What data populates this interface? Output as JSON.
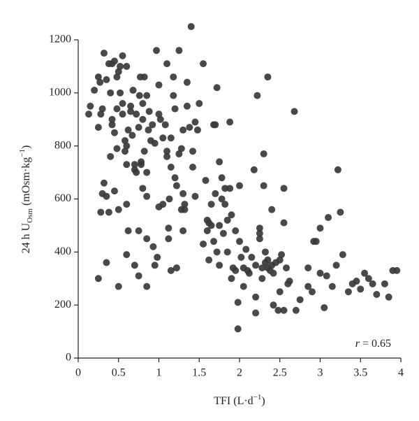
{
  "chart_data": {
    "type": "scatter",
    "xlabel": [
      "TFI (L·d",
      "−1",
      ")"
    ],
    "ylabel": [
      "24 h U",
      "Osm",
      " (mOsm·kg",
      "−1",
      ")"
    ],
    "annotation": [
      "r",
      " = 0.65"
    ],
    "color": "#3a3a3a",
    "xlim": [
      0,
      4
    ],
    "xticks": [
      0,
      0.5,
      1,
      1.5,
      2,
      2.5,
      3,
      3.5,
      4
    ],
    "ylim": [
      0,
      1200
    ],
    "yticks": [
      0,
      200,
      400,
      600,
      800,
      1000,
      1200
    ],
    "grid": false,
    "x": [
      0.13,
      0.15,
      0.2,
      0.25,
      0.27,
      0.25,
      0.28,
      0.3,
      0.32,
      0.35,
      0.38,
      0.4,
      0.42,
      0.45,
      0.48,
      0.5,
      0.52,
      0.55,
      0.6,
      0.25,
      0.28,
      0.3,
      0.32,
      0.35,
      0.35,
      0.38,
      0.4,
      0.42,
      0.42,
      0.45,
      0.45,
      0.48,
      0.48,
      0.5,
      0.5,
      0.52,
      0.55,
      0.55,
      0.58,
      0.58,
      0.6,
      0.6,
      0.6,
      0.6,
      0.62,
      0.62,
      0.65,
      0.65,
      0.67,
      0.68,
      0.7,
      0.7,
      0.7,
      0.72,
      0.72,
      0.75,
      0.75,
      0.75,
      0.76,
      0.77,
      0.78,
      0.78,
      0.8,
      0.8,
      0.8,
      0.82,
      0.82,
      0.85,
      0.85,
      0.85,
      0.85,
      0.85,
      0.87,
      0.88,
      0.9,
      0.92,
      0.93,
      0.95,
      0.95,
      0.97,
      0.98,
      1.0,
      1.0,
      1.0,
      1.02,
      1.05,
      1.05,
      1.08,
      1.1,
      1.1,
      1.1,
      1.12,
      1.13,
      1.12,
      1.15,
      1.15,
      1.15,
      1.18,
      1.18,
      1.2,
      1.2,
      1.22,
      1.22,
      1.25,
      1.25,
      1.28,
      1.28,
      1.3,
      1.3,
      1.3,
      1.32,
      1.32,
      1.35,
      1.35,
      1.38,
      1.4,
      1.42,
      1.42,
      1.45,
      1.45,
      1.48,
      1.5,
      1.55,
      1.55,
      1.58,
      1.6,
      1.6,
      1.62,
      1.62,
      1.65,
      1.65,
      1.68,
      1.68,
      1.7,
      1.7,
      1.72,
      1.72,
      1.75,
      1.75,
      1.75,
      1.78,
      1.78,
      1.8,
      1.82,
      1.82,
      1.85,
      1.85,
      1.88,
      1.88,
      1.9,
      1.9,
      1.92,
      1.95,
      1.95,
      1.98,
      1.98,
      2.0,
      2.0,
      2.02,
      2.05,
      2.05,
      2.08,
      2.1,
      2.12,
      2.15,
      2.18,
      2.2,
      2.2,
      2.2,
      2.22,
      2.25,
      2.25,
      2.25,
      2.28,
      2.28,
      2.3,
      2.3,
      2.32,
      2.32,
      2.35,
      2.35,
      2.35,
      2.38,
      2.4,
      2.4,
      2.42,
      2.42,
      2.45,
      2.48,
      2.5,
      2.5,
      2.52,
      2.55,
      2.55,
      2.55,
      2.58,
      2.6,
      2.62,
      2.68,
      2.7,
      2.75,
      2.85,
      2.85,
      2.9,
      2.92,
      2.95,
      3.0,
      3.0,
      3.05,
      3.08,
      3.1,
      3.15,
      3.2,
      3.22,
      3.25,
      3.28,
      3.35,
      3.4,
      3.45,
      3.5,
      3.55,
      3.6,
      3.65,
      3.7,
      3.8,
      3.85,
      3.9,
      3.95
    ],
    "y": [
      920,
      950,
      1010,
      1060,
      1040,
      870,
      920,
      940,
      1150,
      1050,
      1110,
      1000,
      1110,
      1120,
      1060,
      1080,
      1100,
      1140,
      1100,
      300,
      550,
      620,
      660,
      610,
      360,
      550,
      760,
      900,
      880,
      850,
      630,
      790,
      940,
      560,
      270,
      1000,
      960,
      920,
      820,
      780,
      800,
      730,
      580,
      390,
      480,
      860,
      930,
      950,
      840,
      1010,
      730,
      710,
      350,
      920,
      700,
      870,
      480,
      310,
      990,
      1060,
      730,
      740,
      960,
      900,
      640,
      780,
      1060,
      990,
      700,
      610,
      270,
      450,
      860,
      930,
      820,
      880,
      420,
      350,
      810,
      1160,
      380,
      1030,
      920,
      570,
      900,
      580,
      830,
      880,
      1110,
      780,
      760,
      450,
      600,
      490,
      830,
      720,
      330,
      1060,
      990,
      940,
      680,
      650,
      340,
      770,
      1160,
      790,
      560,
      860,
      620,
      480,
      560,
      580,
      1040,
      950,
      870,
      1250,
      780,
      720,
      610,
      890,
      860,
      960,
      1110,
      430,
      670,
      520,
      480,
      370,
      510,
      500,
      580,
      880,
      440,
      620,
      880,
      1020,
      400,
      740,
      500,
      350,
      680,
      600,
      470,
      640,
      580,
      520,
      400,
      890,
      640,
      540,
      300,
      340,
      480,
      330,
      210,
      110,
      650,
      440,
      380,
      270,
      340,
      410,
      330,
      320,
      380,
      710,
      230,
      170,
      350,
      990,
      470,
      490,
      450,
      340,
      300,
      770,
      650,
      360,
      400,
      1060,
      370,
      340,
      330,
      560,
      350,
      200,
      320,
      360,
      180,
      370,
      250,
      390,
      640,
      510,
      180,
      340,
      280,
      290,
      930,
      180,
      220,
      340,
      270,
      250,
      440,
      440,
      490,
      320,
      190,
      310,
      530,
      270,
      350,
      710,
      550,
      390,
      250,
      280,
      290,
      260,
      320,
      300,
      280,
      240,
      280,
      230,
      330,
      330
    ]
  }
}
